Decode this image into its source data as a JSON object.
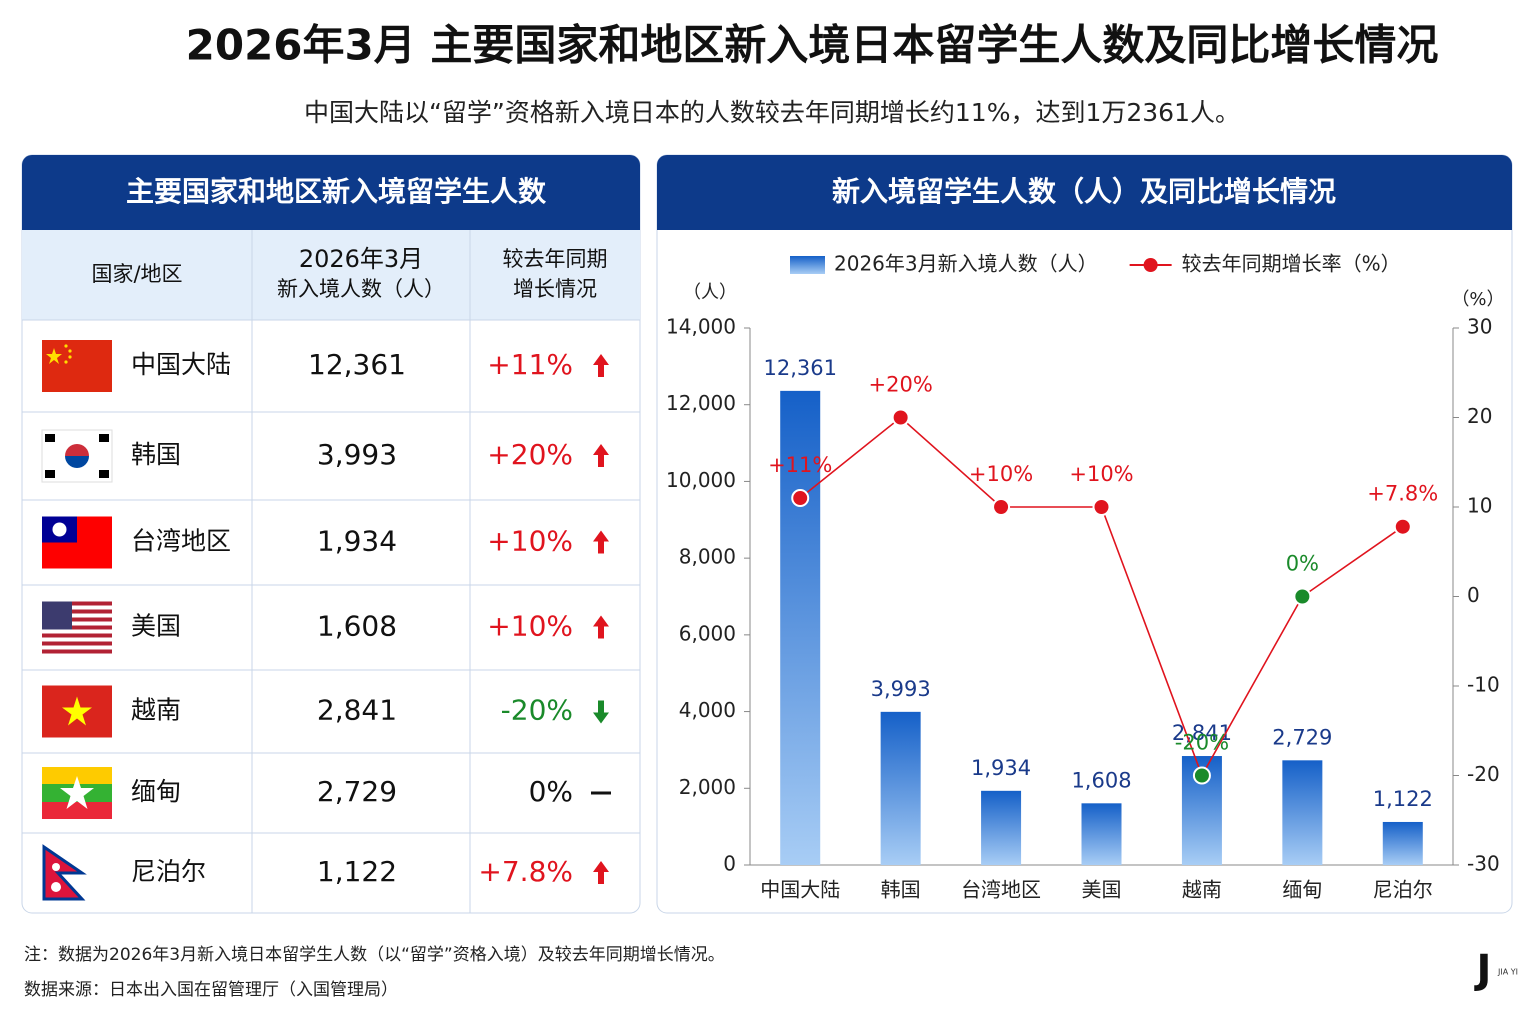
{
  "header": {
    "title": "2026年3月 主要国家和地区新入境日本留学生人数及同比增长情况",
    "subtitle": "中国大陆以“留学”资格新入境日本的人数较去年同期增长约11%，达到1万2361人。"
  },
  "table": {
    "title": "主要国家和地区新入境留学生人数",
    "columns": [
      [
        "国家/地区"
      ],
      [
        "2026年3月",
        "新入境人数（人）"
      ],
      [
        "较去年同期",
        "增长情况"
      ]
    ],
    "rows": [
      [
        "中国大陆",
        "12,361",
        "+11%"
      ],
      [
        "韩国",
        "3,993",
        "+20%"
      ],
      [
        "台湾地区",
        "1,934",
        "+10%"
      ],
      [
        "美国",
        "1,608",
        "+10%"
      ],
      [
        "越南",
        "2,841",
        "-20%"
      ],
      [
        "缅甸",
        "2,729",
        "0%"
      ],
      [
        "尼泊尔",
        "1,122",
        "+7.8%"
      ]
    ]
  },
  "chart_data": {
    "type": "bar-line",
    "title": "新入境留学生人数（人）及同比增长情况",
    "y_label": "（人）",
    "y2_label": "（%）",
    "categories": [
      "中国大陆",
      "韩国",
      "台湾地区",
      "美国",
      "越南",
      "缅甸",
      "尼泊尔"
    ],
    "series": [
      {
        "name": "2026年3月新入境人数（人）",
        "type": "bar",
        "color": "#1560c8",
        "values": [
          12361,
          3993,
          1934,
          1608,
          2841,
          2729,
          1122
        ],
        "value_labels": [
          "12,361",
          "3,993",
          "1,934",
          "1,608",
          "2,841",
          "2,729",
          "1,122"
        ]
      },
      {
        "name": "较去年同期增长率（%）",
        "type": "line",
        "axis": "y2",
        "color": "#e0141e",
        "values": [
          11,
          20,
          10,
          10,
          -20,
          0,
          7.8
        ],
        "value_labels": [
          "+11%",
          "+20%",
          "+10%",
          "+10%",
          "-20%",
          "0%",
          "+7.8%"
        ],
        "label_colors": [
          "#e0141e",
          "#e0141e",
          "#e0141e",
          "#e0141e",
          "#1a8a2a",
          "#1a8a2a",
          "#e0141e"
        ]
      }
    ],
    "ylim": [
      0,
      14000
    ],
    "yticks": [
      0,
      {
        "value": 2000,
        "label": "2,000"
      },
      {
        "value": 4000,
        "label": "4,000"
      },
      {
        "value": 6000,
        "label": "6,000"
      },
      {
        "value": 8000,
        "label": "8,000"
      },
      {
        "value": 10000,
        "label": "10,000"
      },
      {
        "value": 12000,
        "label": "12,000"
      },
      {
        "value": 14000,
        "label": "14,000"
      }
    ],
    "y2lim": [
      -30,
      30
    ],
    "y2ticks": [
      -30,
      -20,
      -10,
      0,
      10,
      20,
      30
    ]
  },
  "footer": {
    "note": "注：数据为2026年3月新入境日本留学生人数（以“留学”资格入境）及较去年同期增长情况。",
    "source": "数据来源：日本出入国在留管理厅（入国管理局）",
    "logo": "J",
    "logo_sub": "JIA YI"
  }
}
